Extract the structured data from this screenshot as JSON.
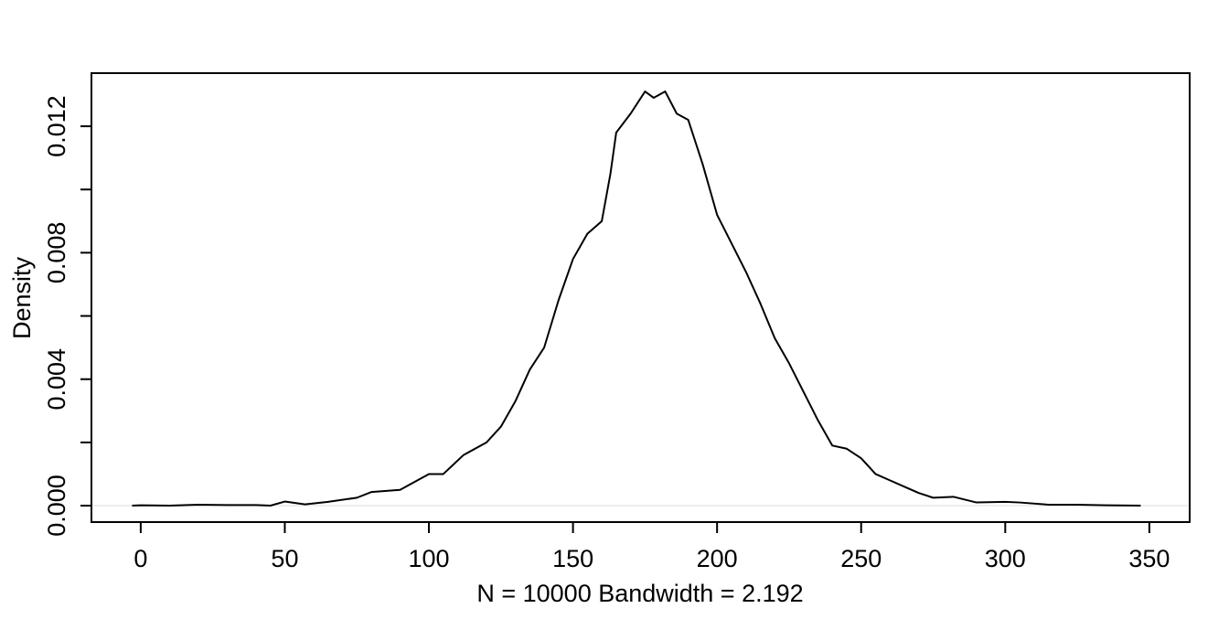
{
  "chart_data": {
    "type": "line",
    "x_label": "N = 10000   Bandwidth = 2.192",
    "y_label": "Density",
    "x": [
      -3,
      0,
      10,
      20,
      30,
      40,
      45,
      50,
      57,
      65,
      75,
      80,
      90,
      100,
      105,
      112,
      120,
      125,
      130,
      135,
      140,
      145,
      150,
      155,
      160,
      163,
      165,
      170,
      175,
      178,
      182,
      186,
      190,
      195,
      200,
      205,
      210,
      215,
      220,
      225,
      230,
      235,
      240,
      245,
      250,
      255,
      260,
      265,
      270,
      275,
      282,
      290,
      300,
      305,
      315,
      325,
      335,
      347
    ],
    "series": [
      {
        "color": "#000000",
        "values": [
          0,
          1e-05,
          0,
          3e-05,
          2e-05,
          2e-05,
          0,
          0.00013,
          4e-05,
          0.00012,
          0.00025,
          0.00043,
          0.0005,
          0.001,
          0.001,
          0.0016,
          0.002,
          0.0025,
          0.0033,
          0.0043,
          0.005,
          0.0065,
          0.0078,
          0.0086,
          0.009,
          0.0105,
          0.0118,
          0.0124,
          0.0131,
          0.0129,
          0.0131,
          0.0124,
          0.0122,
          0.0108,
          0.0092,
          0.0083,
          0.0074,
          0.0064,
          0.0053,
          0.0045,
          0.0036,
          0.0027,
          0.0019,
          0.0018,
          0.0015,
          0.001,
          0.0008,
          0.0006,
          0.0004,
          0.00025,
          0.00028,
          0.0001,
          0.00012,
          0.0001,
          3e-05,
          3e-05,
          1e-05,
          0
        ]
      }
    ],
    "xlim": [
      -17.1,
      364.0
    ],
    "ylim": [
      -0.00052,
      0.01368
    ],
    "xticks": [
      0,
      50,
      100,
      150,
      200,
      250,
      300,
      350
    ],
    "yticks": [
      {
        "value": 0,
        "label": "0.000"
      },
      {
        "value": 0.004,
        "label": "0.004"
      },
      {
        "value": 0.008,
        "label": "0.008"
      },
      {
        "value": 0.012,
        "label": "0.012"
      }
    ],
    "yminorticks": [
      0.002,
      0.006,
      0.01
    ]
  }
}
